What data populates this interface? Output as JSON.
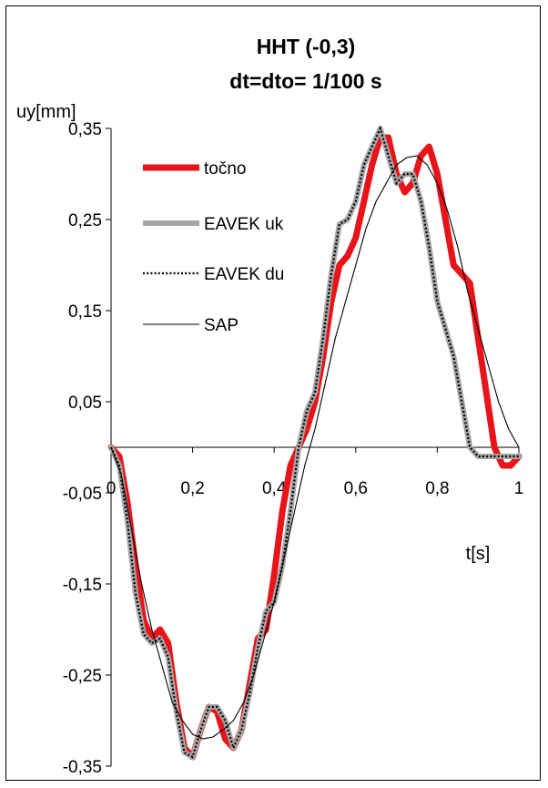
{
  "chart_data": {
    "type": "line",
    "title_lines": [
      "HHT (-0,3)",
      "dt=dto= 1/100 s"
    ],
    "xlabel": "t[s]",
    "ylabel": "uy[mm]",
    "xlim": [
      0,
      1
    ],
    "ylim": [
      -0.35,
      0.35
    ],
    "x_ticks": [
      0,
      0.2,
      0.4,
      0.6,
      0.8,
      1
    ],
    "x_tick_labels": [
      "0",
      "0,2",
      "0,4",
      "0,6",
      "0,8",
      "1"
    ],
    "y_ticks": [
      0.35,
      0.25,
      0.15,
      0.05,
      -0.05,
      -0.15,
      -0.25,
      -0.35
    ],
    "y_tick_labels": [
      "0,35",
      "0,25",
      "0,15",
      "0,05",
      "-0,05",
      "-0,15",
      "-0,25",
      "-0,35"
    ],
    "grid": false,
    "legend_position": "top-left",
    "series": [
      {
        "name": "točno",
        "color": "#e8141a",
        "style": "thick",
        "x": [
          0,
          0.02,
          0.04,
          0.06,
          0.08,
          0.1,
          0.12,
          0.14,
          0.16,
          0.18,
          0.2,
          0.22,
          0.24,
          0.26,
          0.28,
          0.3,
          0.32,
          0.34,
          0.36,
          0.38,
          0.4,
          0.42,
          0.44,
          0.46,
          0.48,
          0.5,
          0.52,
          0.54,
          0.56,
          0.58,
          0.6,
          0.62,
          0.64,
          0.66,
          0.68,
          0.7,
          0.72,
          0.74,
          0.76,
          0.78,
          0.8,
          0.82,
          0.84,
          0.86,
          0.88,
          0.9,
          0.92,
          0.94,
          0.96,
          0.98,
          1.0
        ],
        "y": [
          0.0,
          -0.01,
          -0.06,
          -0.13,
          -0.19,
          -0.21,
          -0.2,
          -0.215,
          -0.28,
          -0.33,
          -0.34,
          -0.31,
          -0.285,
          -0.29,
          -0.32,
          -0.33,
          -0.31,
          -0.26,
          -0.21,
          -0.2,
          -0.14,
          -0.07,
          -0.02,
          0.0,
          0.02,
          0.05,
          0.1,
          0.16,
          0.2,
          0.21,
          0.23,
          0.27,
          0.31,
          0.34,
          0.34,
          0.3,
          0.28,
          0.29,
          0.32,
          0.33,
          0.3,
          0.25,
          0.2,
          0.19,
          0.18,
          0.12,
          0.06,
          0.0,
          -0.02,
          -0.02,
          -0.01
        ]
      },
      {
        "name": "EAVEK uk",
        "color": "#a6a6a6",
        "style": "gray",
        "x": [
          0,
          0.02,
          0.04,
          0.06,
          0.08,
          0.1,
          0.12,
          0.14,
          0.16,
          0.18,
          0.2,
          0.22,
          0.24,
          0.26,
          0.28,
          0.3,
          0.32,
          0.34,
          0.36,
          0.38,
          0.4,
          0.42,
          0.44,
          0.46,
          0.48,
          0.5,
          0.52,
          0.54,
          0.56,
          0.58,
          0.6,
          0.62,
          0.64,
          0.66,
          0.68,
          0.7,
          0.72,
          0.74,
          0.76,
          0.78,
          0.8,
          0.82,
          0.84,
          0.86,
          0.88,
          0.9,
          0.92,
          0.94,
          0.96,
          0.98,
          1.0
        ],
        "y": [
          0.0,
          -0.02,
          -0.08,
          -0.16,
          -0.205,
          -0.215,
          -0.21,
          -0.23,
          -0.29,
          -0.335,
          -0.34,
          -0.31,
          -0.285,
          -0.285,
          -0.3,
          -0.33,
          -0.31,
          -0.27,
          -0.22,
          -0.18,
          -0.17,
          -0.13,
          -0.07,
          0.0,
          0.04,
          0.06,
          0.12,
          0.19,
          0.245,
          0.25,
          0.27,
          0.31,
          0.33,
          0.35,
          0.32,
          0.29,
          0.3,
          0.3,
          0.27,
          0.22,
          0.16,
          0.13,
          0.1,
          0.05,
          0.0,
          -0.01,
          -0.01,
          -0.01,
          -0.01,
          -0.01,
          -0.01
        ]
      },
      {
        "name": "EAVEK du",
        "color": "#000000",
        "style": "dotted",
        "x": [
          0,
          0.02,
          0.04,
          0.06,
          0.08,
          0.1,
          0.12,
          0.14,
          0.16,
          0.18,
          0.2,
          0.22,
          0.24,
          0.26,
          0.28,
          0.3,
          0.32,
          0.34,
          0.36,
          0.38,
          0.4,
          0.42,
          0.44,
          0.46,
          0.48,
          0.5,
          0.52,
          0.54,
          0.56,
          0.58,
          0.6,
          0.62,
          0.64,
          0.66,
          0.68,
          0.7,
          0.72,
          0.74,
          0.76,
          0.78,
          0.8,
          0.82,
          0.84,
          0.86,
          0.88,
          0.9,
          0.92,
          0.94,
          0.96,
          0.98,
          1.0
        ],
        "y": [
          0.0,
          -0.02,
          -0.08,
          -0.16,
          -0.205,
          -0.215,
          -0.21,
          -0.23,
          -0.29,
          -0.335,
          -0.34,
          -0.31,
          -0.285,
          -0.285,
          -0.3,
          -0.33,
          -0.31,
          -0.27,
          -0.22,
          -0.18,
          -0.17,
          -0.13,
          -0.07,
          0.0,
          0.04,
          0.06,
          0.12,
          0.19,
          0.245,
          0.25,
          0.27,
          0.31,
          0.33,
          0.35,
          0.32,
          0.29,
          0.3,
          0.3,
          0.27,
          0.22,
          0.16,
          0.13,
          0.1,
          0.05,
          0.0,
          -0.01,
          -0.01,
          -0.01,
          -0.01,
          -0.01,
          -0.01
        ]
      },
      {
        "name": "SAP",
        "color": "#000000",
        "style": "thin",
        "x": [
          0,
          0.025,
          0.05,
          0.075,
          0.1,
          0.125,
          0.15,
          0.175,
          0.2,
          0.225,
          0.25,
          0.275,
          0.3,
          0.325,
          0.35,
          0.375,
          0.4,
          0.425,
          0.45,
          0.475,
          0.5,
          0.525,
          0.55,
          0.575,
          0.6,
          0.625,
          0.65,
          0.675,
          0.7,
          0.725,
          0.75,
          0.775,
          0.8,
          0.825,
          0.85,
          0.875,
          0.9,
          0.925,
          0.95,
          0.975,
          1.0
        ],
        "y": [
          0.0,
          -0.03,
          -0.09,
          -0.15,
          -0.2,
          -0.24,
          -0.28,
          -0.3,
          -0.315,
          -0.32,
          -0.318,
          -0.31,
          -0.3,
          -0.28,
          -0.25,
          -0.21,
          -0.17,
          -0.12,
          -0.07,
          -0.02,
          0.02,
          0.07,
          0.12,
          0.16,
          0.2,
          0.24,
          0.27,
          0.29,
          0.31,
          0.318,
          0.32,
          0.31,
          0.29,
          0.26,
          0.22,
          0.17,
          0.13,
          0.09,
          0.05,
          0.02,
          0.0
        ]
      }
    ]
  }
}
